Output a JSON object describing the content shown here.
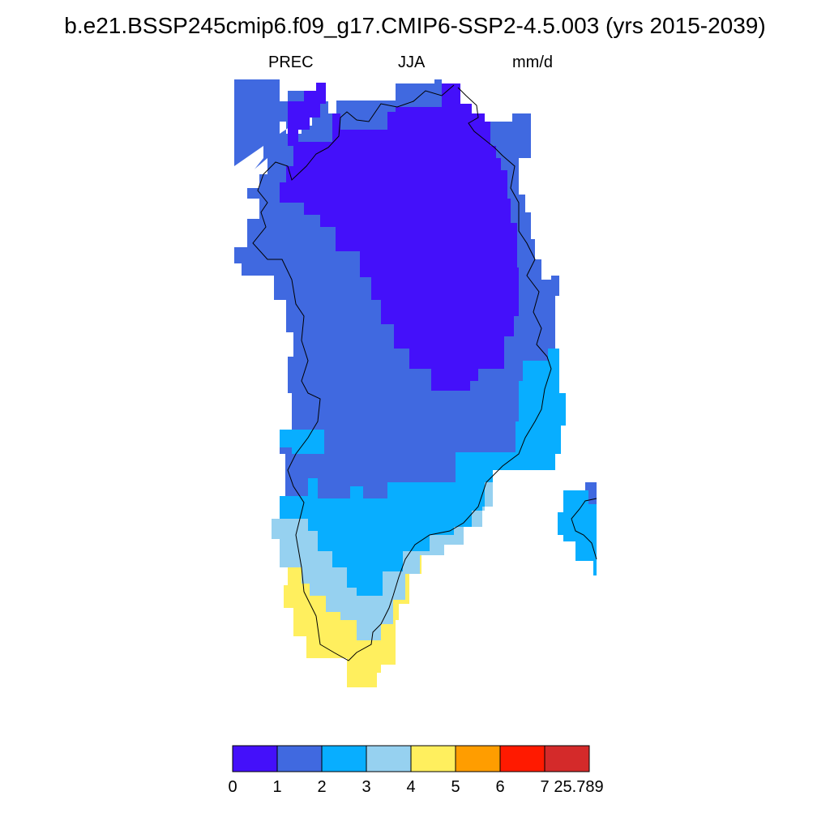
{
  "title": "b.e21.BSSP245cmip6.f09_g17.CMIP6-SSP2-4.5.003 (yrs 2015-2039)",
  "variable": "PREC",
  "season": "JJA",
  "units": "mm/d",
  "colorbar": {
    "colors": [
      "#4410fa",
      "#4069e0",
      "#08aeff",
      "#96d1f0",
      "#ffef5e",
      "#ff9d00",
      "#ff1a00",
      "#d42a2a"
    ],
    "tick_labels": [
      "0",
      "1",
      "2",
      "3",
      "4",
      "5",
      "6",
      "7",
      "25.789"
    ]
  }
}
